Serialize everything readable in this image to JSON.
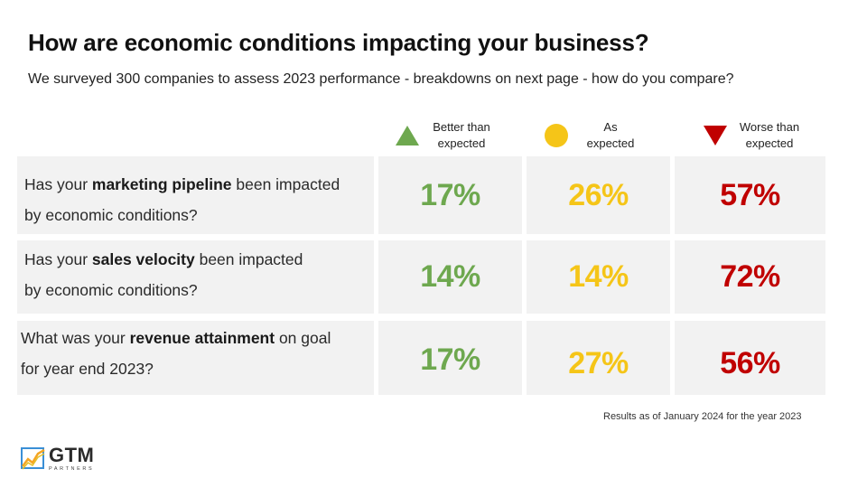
{
  "header": {
    "title": "How are economic conditions impacting your business?",
    "subtitle": "We surveyed 300 companies to assess 2023 performance - breakdowns on next page - how do you compare?"
  },
  "legend": [
    {
      "line1": "Better than",
      "line2": "expected",
      "icon": "triangle-up-icon",
      "color": "#6ea84f"
    },
    {
      "line1": "As",
      "line2": "expected",
      "icon": "circle-icon",
      "color": "#f5c518"
    },
    {
      "line1": "Worse than",
      "line2": "expected",
      "icon": "triangle-down-icon",
      "color": "#c00000"
    }
  ],
  "rows": [
    {
      "q_pre": "Has your ",
      "q_bold": "marketing pipeline",
      "q_post": " been impacted",
      "q_line2": "by economic conditions?",
      "better": "17%",
      "as": "26%",
      "worse": "57%"
    },
    {
      "q_pre": "Has your ",
      "q_bold": "sales velocity",
      "q_post": " been impacted",
      "q_line2": "by economic conditions?",
      "better": "14%",
      "as": "14%",
      "worse": "72%"
    },
    {
      "q_pre": "What was your ",
      "q_bold": "revenue attainment",
      "q_post": " on goal",
      "q_line2": "for year end 2023?",
      "better": "17%",
      "as": "27%",
      "worse": "56%"
    }
  ],
  "footnote": "Results as of January 2024 for the year 2023",
  "logo": {
    "word": "GTM",
    "sub": "PARTNERS"
  },
  "colors": {
    "better": "#6ea84f",
    "as": "#f5c518",
    "worse": "#c00000",
    "cell_bg": "#f2f2f2"
  }
}
